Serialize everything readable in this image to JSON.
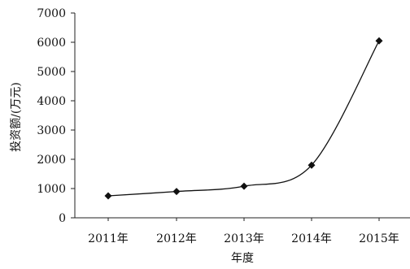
{
  "chart_data": {
    "type": "line",
    "categories": [
      "2011年",
      "2012年",
      "2013年",
      "2014年",
      "2015年"
    ],
    "series": [
      {
        "values": [
          750,
          900,
          1080,
          1800,
          6050
        ]
      }
    ],
    "xlabel": "年度",
    "ylabel": "投资额/(万元)",
    "ylim": [
      0,
      7000
    ],
    "yticks": [
      0,
      1000,
      2000,
      3000,
      4000,
      5000,
      6000,
      7000
    ],
    "grid": false,
    "marker": "diamond",
    "smooth": true
  }
}
